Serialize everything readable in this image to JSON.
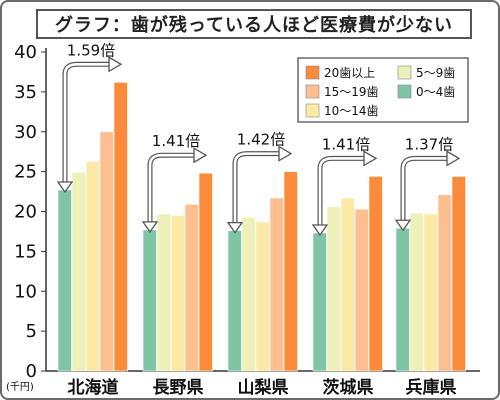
{
  "chart_data": {
    "type": "bar",
    "title": "グラフ：歯が残っている人ほど医療費が少ない",
    "y_unit": "(千円)",
    "ylim": [
      0,
      40
    ],
    "y_ticks": [
      0,
      5,
      10,
      15,
      20,
      25,
      30,
      35,
      40
    ],
    "grid": false,
    "legend_position": "top-right",
    "categories": [
      "北海道",
      "長野県",
      "山梨県",
      "茨城県",
      "兵庫県"
    ],
    "series": [
      {
        "name": "0〜4歯",
        "color": "#7fc4a4",
        "values": [
          22.7,
          17.7,
          17.6,
          17.3,
          17.9
        ]
      },
      {
        "name": "5〜9歯",
        "color": "#eef0ba",
        "values": [
          24.9,
          19.7,
          19.3,
          20.6,
          19.8
        ]
      },
      {
        "name": "10〜14歯",
        "color": "#fde9a6",
        "values": [
          26.3,
          19.5,
          18.7,
          21.7,
          19.7
        ]
      },
      {
        "name": "15〜19歯",
        "color": "#fdbf8f",
        "values": [
          30.0,
          20.9,
          21.7,
          20.3,
          22.1
        ]
      },
      {
        "name": "20歯以上",
        "color": "#f98b3a",
        "values": [
          36.2,
          24.8,
          25.0,
          24.4,
          24.4
        ]
      }
    ],
    "ratios": [
      "1.59倍",
      "1.41倍",
      "1.42倍",
      "1.41倍",
      "1.37倍"
    ],
    "legend_order": [
      "20歯以上",
      "5〜9歯",
      "15〜19歯",
      "0〜4歯",
      "10〜14歯"
    ]
  }
}
